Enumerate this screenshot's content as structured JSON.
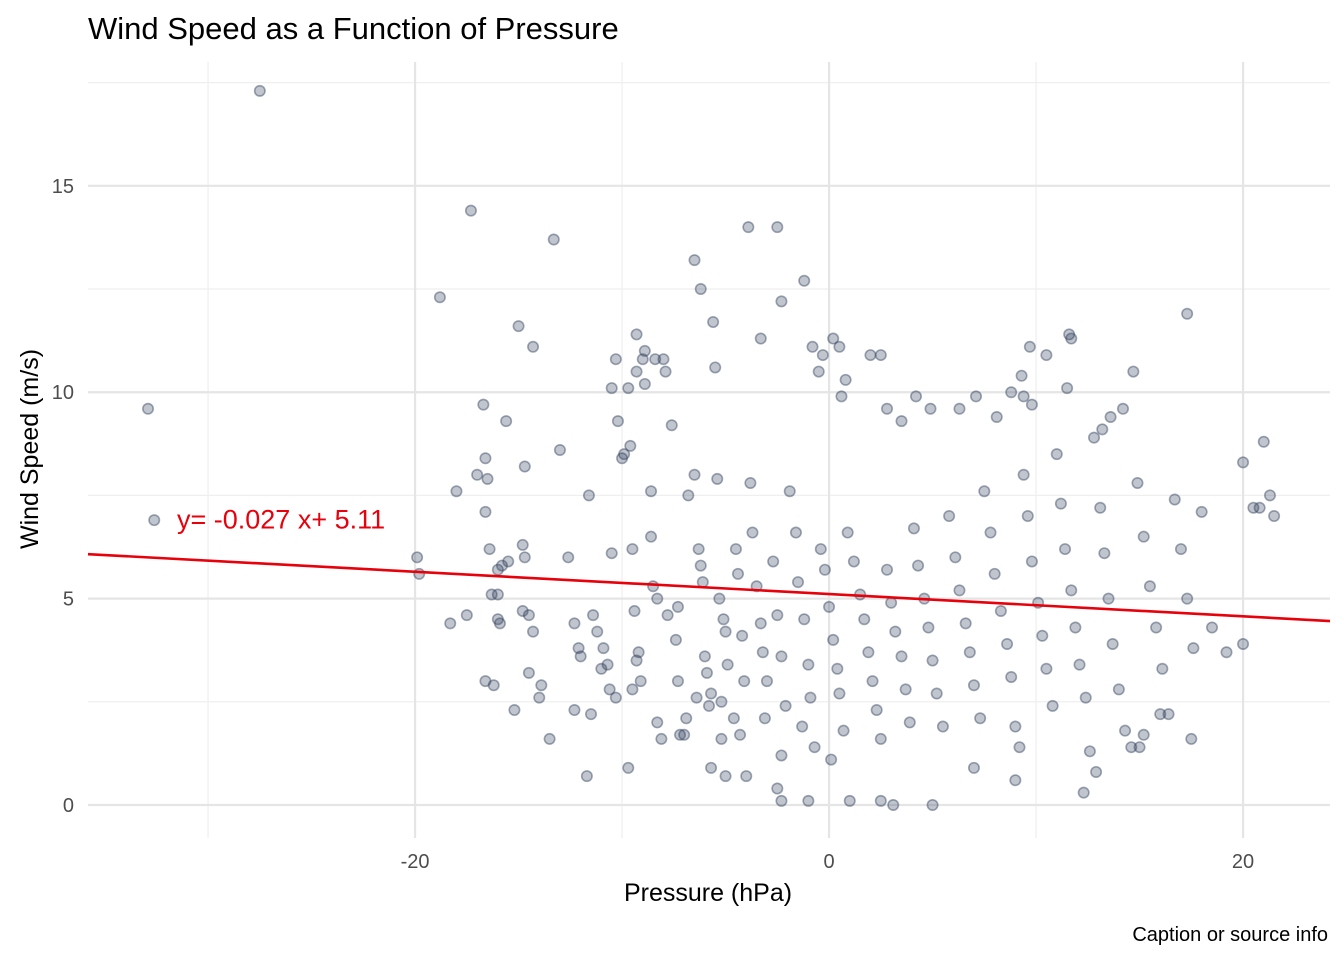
{
  "chart_data": {
    "type": "scatter",
    "title": "Wind Speed as a Function of Pressure",
    "xlabel": "Pressure (hPa)",
    "ylabel": "Wind Speed (m/s)",
    "caption": "Caption or source info",
    "xlim": [
      -35.8,
      24.2
    ],
    "ylim": [
      -0.8,
      18.0
    ],
    "x_ticks": [
      -20,
      0,
      20
    ],
    "x_tick_labels": [
      "-20",
      "0",
      "20"
    ],
    "y_ticks": [
      0,
      5,
      10,
      15
    ],
    "y_tick_labels": [
      "0",
      "5",
      "10",
      "15"
    ],
    "grid": true,
    "legend": "none",
    "point_color": "#2e3f5c",
    "fit_color": "#e8000b",
    "fit": {
      "slope": -0.027,
      "intercept": 5.11,
      "label": "y= -0.027 x+ 5.11",
      "label_x": -31.5,
      "label_y": 6.7
    },
    "points": [
      [
        -27.5,
        17.3
      ],
      [
        -32.9,
        9.6
      ],
      [
        -32.6,
        6.9
      ],
      [
        -17.3,
        14.4
      ],
      [
        -18.8,
        12.3
      ],
      [
        -13.3,
        13.7
      ],
      [
        -19.9,
        6.0
      ],
      [
        -19.8,
        5.6
      ],
      [
        -18.3,
        4.4
      ],
      [
        -18.0,
        7.6
      ],
      [
        -17.5,
        4.6
      ],
      [
        -17.0,
        8.0
      ],
      [
        -16.7,
        9.7
      ],
      [
        -16.6,
        8.4
      ],
      [
        -16.6,
        7.1
      ],
      [
        -16.5,
        7.9
      ],
      [
        -16.4,
        6.2
      ],
      [
        -16.3,
        5.1
      ],
      [
        -16.0,
        5.1
      ],
      [
        -16.0,
        4.5
      ],
      [
        -15.9,
        4.4
      ],
      [
        -16.0,
        5.7
      ],
      [
        -15.8,
        5.8
      ],
      [
        -15.6,
        9.3
      ],
      [
        -15.5,
        5.9
      ],
      [
        -15.0,
        11.6
      ],
      [
        -14.7,
        8.2
      ],
      [
        -14.8,
        6.3
      ],
      [
        -14.7,
        6.0
      ],
      [
        -14.8,
        4.7
      ],
      [
        -14.5,
        4.6
      ],
      [
        -14.3,
        11.1
      ],
      [
        -14.3,
        4.2
      ],
      [
        -16.6,
        3.0
      ],
      [
        -16.2,
        2.9
      ],
      [
        -15.2,
        2.3
      ],
      [
        -14.5,
        3.2
      ],
      [
        -14.0,
        2.6
      ],
      [
        -13.9,
        2.9
      ],
      [
        -13.5,
        1.6
      ],
      [
        -13.0,
        8.6
      ],
      [
        -12.6,
        6.0
      ],
      [
        -12.3,
        4.4
      ],
      [
        -12.1,
        3.8
      ],
      [
        -12.0,
        3.6
      ],
      [
        -12.3,
        2.3
      ],
      [
        -11.6,
        7.5
      ],
      [
        -11.4,
        4.6
      ],
      [
        -11.2,
        4.2
      ],
      [
        -11.0,
        3.3
      ],
      [
        -10.9,
        3.8
      ],
      [
        -10.7,
        3.4
      ],
      [
        -11.5,
        2.2
      ],
      [
        -11.7,
        0.7
      ],
      [
        -10.6,
        2.8
      ],
      [
        -10.3,
        2.6
      ],
      [
        -10.5,
        6.1
      ],
      [
        -10.2,
        9.3
      ],
      [
        -10.0,
        8.4
      ],
      [
        -9.9,
        8.5
      ],
      [
        -9.7,
        10.1
      ],
      [
        -9.6,
        8.7
      ],
      [
        -9.5,
        6.2
      ],
      [
        -9.4,
        4.7
      ],
      [
        -9.3,
        3.5
      ],
      [
        -9.2,
        3.7
      ],
      [
        -9.5,
        2.8
      ],
      [
        -9.1,
        3.0
      ],
      [
        -9.0,
        10.8
      ],
      [
        -8.9,
        10.2
      ],
      [
        -8.6,
        7.6
      ],
      [
        -8.6,
        6.5
      ],
      [
        -8.5,
        5.3
      ],
      [
        -8.3,
        5.0
      ],
      [
        -8.0,
        10.8
      ],
      [
        -7.6,
        9.2
      ],
      [
        -7.8,
        4.6
      ],
      [
        -7.3,
        4.8
      ],
      [
        -7.4,
        4.0
      ],
      [
        -7.3,
        3.0
      ],
      [
        -7.2,
        1.7
      ],
      [
        -6.8,
        7.5
      ],
      [
        -6.5,
        8.0
      ],
      [
        -6.3,
        6.2
      ],
      [
        -6.2,
        5.8
      ],
      [
        -6.1,
        5.4
      ],
      [
        -6.0,
        3.6
      ],
      [
        -5.9,
        3.2
      ],
      [
        -5.7,
        2.7
      ],
      [
        -5.7,
        0.9
      ],
      [
        -5.4,
        7.9
      ],
      [
        -5.3,
        5.0
      ],
      [
        -5.1,
        4.5
      ],
      [
        -5.0,
        4.2
      ],
      [
        -4.9,
        3.4
      ],
      [
        -5.2,
        1.6
      ],
      [
        -7.0,
        1.7
      ],
      [
        -6.9,
        2.1
      ],
      [
        -6.4,
        2.6
      ],
      [
        -8.3,
        2.0
      ],
      [
        -9.7,
        0.9
      ],
      [
        -8.1,
        1.6
      ],
      [
        -5.8,
        2.4
      ],
      [
        -5.2,
        2.5
      ],
      [
        -4.6,
        2.1
      ],
      [
        -4.3,
        1.7
      ],
      [
        -4.1,
        3.0
      ],
      [
        -4.5,
        6.2
      ],
      [
        -4.4,
        5.6
      ],
      [
        -4.2,
        4.1
      ],
      [
        -3.8,
        7.8
      ],
      [
        -3.7,
        6.6
      ],
      [
        -3.5,
        5.3
      ],
      [
        -3.3,
        4.4
      ],
      [
        -3.2,
        3.7
      ],
      [
        -3.0,
        3.0
      ],
      [
        -3.1,
        2.1
      ],
      [
        -2.7,
        5.9
      ],
      [
        -2.5,
        4.6
      ],
      [
        -2.3,
        3.6
      ],
      [
        -2.1,
        2.4
      ],
      [
        -2.3,
        1.2
      ],
      [
        -1.9,
        7.6
      ],
      [
        -1.6,
        6.6
      ],
      [
        -1.5,
        5.4
      ],
      [
        -1.2,
        4.5
      ],
      [
        -1.0,
        3.4
      ],
      [
        -0.9,
        2.6
      ],
      [
        -1.3,
        1.9
      ],
      [
        -0.7,
        1.4
      ],
      [
        -0.4,
        6.2
      ],
      [
        -0.2,
        5.7
      ],
      [
        0.0,
        4.8
      ],
      [
        0.2,
        4.0
      ],
      [
        0.4,
        3.3
      ],
      [
        0.5,
        2.7
      ],
      [
        0.7,
        1.8
      ],
      [
        0.1,
        1.1
      ],
      [
        0.9,
        6.6
      ],
      [
        1.2,
        5.9
      ],
      [
        1.5,
        5.1
      ],
      [
        1.7,
        4.5
      ],
      [
        1.9,
        3.7
      ],
      [
        2.1,
        3.0
      ],
      [
        2.3,
        2.3
      ],
      [
        2.5,
        1.6
      ],
      [
        2.8,
        5.7
      ],
      [
        3.0,
        4.9
      ],
      [
        3.2,
        4.2
      ],
      [
        3.5,
        3.6
      ],
      [
        3.7,
        2.8
      ],
      [
        3.9,
        2.0
      ],
      [
        4.1,
        6.7
      ],
      [
        4.3,
        5.8
      ],
      [
        4.6,
        5.0
      ],
      [
        4.8,
        4.3
      ],
      [
        5.0,
        3.5
      ],
      [
        5.2,
        2.7
      ],
      [
        5.5,
        1.9
      ],
      [
        5.8,
        7.0
      ],
      [
        6.1,
        6.0
      ],
      [
        6.3,
        5.2
      ],
      [
        6.6,
        4.4
      ],
      [
        6.8,
        3.7
      ],
      [
        7.0,
        2.9
      ],
      [
        7.3,
        2.1
      ],
      [
        7.5,
        7.6
      ],
      [
        7.8,
        6.6
      ],
      [
        8.0,
        5.6
      ],
      [
        8.3,
        4.7
      ],
      [
        8.6,
        3.9
      ],
      [
        8.8,
        3.1
      ],
      [
        9.0,
        1.9
      ],
      [
        9.2,
        1.4
      ],
      [
        9.4,
        8.0
      ],
      [
        9.6,
        7.0
      ],
      [
        9.8,
        5.9
      ],
      [
        10.1,
        4.9
      ],
      [
        10.3,
        4.1
      ],
      [
        10.5,
        3.3
      ],
      [
        10.8,
        2.4
      ],
      [
        11.0,
        8.5
      ],
      [
        11.2,
        7.3
      ],
      [
        11.4,
        6.2
      ],
      [
        11.7,
        5.2
      ],
      [
        11.9,
        4.3
      ],
      [
        12.1,
        3.4
      ],
      [
        12.4,
        2.6
      ],
      [
        12.6,
        1.3
      ],
      [
        12.3,
        0.3
      ],
      [
        12.8,
        8.9
      ],
      [
        13.1,
        7.2
      ],
      [
        13.3,
        6.1
      ],
      [
        13.5,
        5.0
      ],
      [
        13.7,
        3.9
      ],
      [
        14.0,
        2.8
      ],
      [
        14.3,
        1.8
      ],
      [
        14.6,
        1.4
      ],
      [
        14.9,
        7.8
      ],
      [
        15.2,
        6.5
      ],
      [
        15.5,
        5.3
      ],
      [
        15.8,
        4.3
      ],
      [
        16.1,
        3.3
      ],
      [
        16.4,
        2.2
      ],
      [
        16.7,
        7.4
      ],
      [
        17.0,
        6.2
      ],
      [
        17.3,
        5.0
      ],
      [
        17.6,
        3.8
      ],
      [
        17.3,
        11.9
      ],
      [
        18.0,
        7.1
      ],
      [
        18.5,
        4.3
      ],
      [
        19.2,
        3.7
      ],
      [
        20.0,
        8.3
      ],
      [
        20.0,
        3.9
      ],
      [
        20.5,
        7.2
      ],
      [
        20.8,
        7.2
      ],
      [
        21.0,
        8.8
      ],
      [
        21.3,
        7.5
      ],
      [
        21.5,
        7.0
      ],
      [
        17.5,
        1.6
      ],
      [
        16.0,
        2.2
      ],
      [
        15.2,
        1.7
      ],
      [
        15.0,
        1.4
      ],
      [
        12.9,
        0.8
      ],
      [
        9.0,
        0.6
      ],
      [
        7.0,
        0.9
      ],
      [
        5.0,
        0.0
      ],
      [
        3.1,
        0.0
      ],
      [
        2.5,
        0.1
      ],
      [
        1.0,
        0.1
      ],
      [
        -1.0,
        0.1
      ],
      [
        -2.3,
        0.1
      ],
      [
        -2.5,
        0.4
      ],
      [
        -4.0,
        0.7
      ],
      [
        -5.0,
        0.7
      ],
      [
        -3.9,
        14.0
      ],
      [
        -2.5,
        14.0
      ],
      [
        -6.5,
        13.2
      ],
      [
        -6.2,
        12.5
      ],
      [
        -2.3,
        12.2
      ],
      [
        -1.2,
        12.7
      ],
      [
        -5.6,
        11.7
      ],
      [
        -3.3,
        11.3
      ],
      [
        0.2,
        11.3
      ],
      [
        0.5,
        11.1
      ],
      [
        -0.8,
        11.1
      ],
      [
        2.0,
        10.9
      ],
      [
        2.5,
        10.9
      ],
      [
        -0.3,
        10.9
      ],
      [
        0.8,
        10.3
      ],
      [
        -0.5,
        10.5
      ],
      [
        -5.5,
        10.6
      ],
      [
        -9.3,
        11.4
      ],
      [
        -8.9,
        11.0
      ],
      [
        -8.4,
        10.8
      ],
      [
        -10.3,
        10.8
      ],
      [
        -10.5,
        10.1
      ],
      [
        -9.3,
        10.5
      ],
      [
        -7.9,
        10.5
      ],
      [
        0.6,
        9.9
      ],
      [
        2.8,
        9.6
      ],
      [
        3.5,
        9.3
      ],
      [
        4.2,
        9.9
      ],
      [
        4.9,
        9.6
      ],
      [
        6.3,
        9.6
      ],
      [
        7.1,
        9.9
      ],
      [
        8.1,
        9.4
      ],
      [
        8.8,
        10.0
      ],
      [
        9.3,
        10.4
      ],
      [
        9.7,
        11.1
      ],
      [
        11.5,
        10.1
      ],
      [
        11.6,
        11.4
      ],
      [
        11.7,
        11.3
      ],
      [
        14.7,
        10.5
      ],
      [
        14.2,
        9.6
      ],
      [
        13.6,
        9.4
      ],
      [
        13.2,
        9.1
      ],
      [
        10.5,
        10.9
      ],
      [
        9.8,
        9.7
      ],
      [
        9.4,
        9.9
      ]
    ]
  }
}
